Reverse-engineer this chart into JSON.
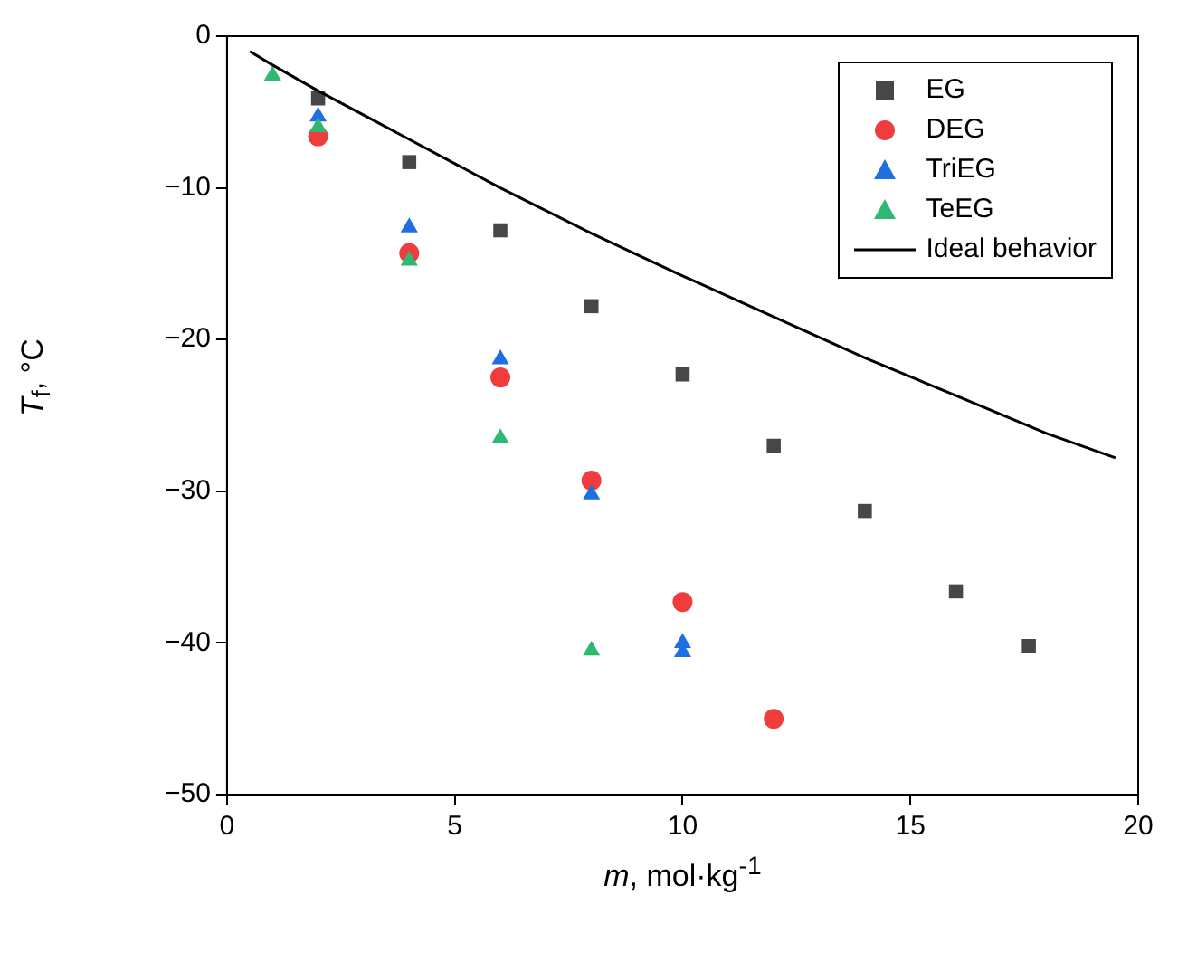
{
  "chart_data": {
    "type": "scatter",
    "xlabel": "m, mol·kg$^{-1}$",
    "ylabel": "T$_{f}$, °C",
    "xlim": [
      0,
      20
    ],
    "xticks": [
      0,
      5,
      10,
      15,
      20
    ],
    "ylim": [
      -50,
      0
    ],
    "yticks": [
      -50,
      -40,
      -30,
      -20,
      -10,
      0
    ],
    "grid": false,
    "legend": "top right",
    "series": [
      {
        "name": "EG",
        "color": "#474747",
        "marker": "square",
        "x": [
          2,
          4,
          6,
          8,
          10,
          12,
          14,
          16,
          17.6
        ],
        "values": [
          -4.1,
          -8.3,
          -12.8,
          -17.8,
          -22.3,
          -27.0,
          -31.3,
          -36.6,
          -40.2
        ]
      },
      {
        "name": "DEG",
        "color": "#f03c3c",
        "marker": "circle",
        "x": [
          2,
          4,
          6,
          8,
          10,
          12
        ],
        "values": [
          -6.6,
          -14.3,
          -22.5,
          -29.3,
          -37.3,
          -45.0
        ]
      },
      {
        "name": "TriEG",
        "color": "#1e6fe0",
        "marker": "triangle",
        "x": [
          2,
          4,
          6,
          8,
          10,
          10
        ],
        "values": [
          -5.3,
          -12.6,
          -21.3,
          -30.2,
          -40.0,
          -40.6
        ]
      },
      {
        "name": "TeEG",
        "color": "#2eb872",
        "marker": "triangle",
        "x": [
          1,
          2,
          4,
          6,
          8
        ],
        "values": [
          -2.6,
          -6.0,
          -14.8,
          -26.5,
          -40.5
        ]
      },
      {
        "name": "Ideal behavior",
        "color": "#000000",
        "type": "line",
        "marker": "none",
        "line_style": "solid",
        "x": [
          0.5,
          1,
          2,
          3,
          4,
          6,
          8,
          10,
          12,
          14,
          16,
          18,
          19.5
        ],
        "values": [
          -1.0,
          -1.9,
          -3.6,
          -5.2,
          -6.8,
          -10.0,
          -13.0,
          -15.8,
          -18.5,
          -21.2,
          -23.7,
          -26.2,
          -27.8
        ]
      }
    ]
  }
}
